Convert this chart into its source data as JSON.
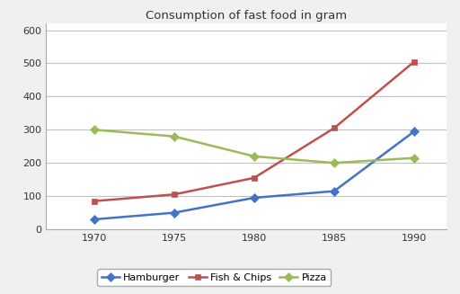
{
  "title": "Consumption of fast food in gram",
  "years": [
    1970,
    1975,
    1980,
    1985,
    1990
  ],
  "series": [
    {
      "name": "Hamburger",
      "values": [
        30,
        50,
        95,
        115,
        295
      ],
      "color": "#4472C4",
      "marker": "D"
    },
    {
      "name": "Fish & Chips",
      "values": [
        85,
        105,
        155,
        305,
        505
      ],
      "color": "#C0504D",
      "marker": "s"
    },
    {
      "name": "Pizza",
      "values": [
        300,
        280,
        220,
        200,
        215
      ],
      "color": "#9BBB59",
      "marker": "D"
    }
  ],
  "ylim": [
    0,
    620
  ],
  "yticks": [
    0,
    100,
    200,
    300,
    400,
    500,
    600
  ],
  "background_color": "#f0f0f0",
  "plot_bg_color": "#ffffff",
  "grid_color": "#c0c0c0",
  "title_fontsize": 9.5,
  "legend_fontsize": 8,
  "tick_fontsize": 8
}
